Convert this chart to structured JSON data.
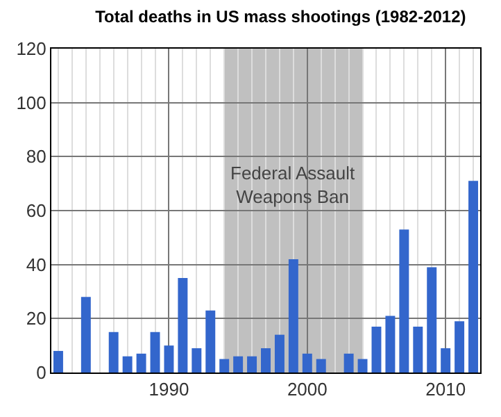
{
  "chart_data": {
    "type": "bar",
    "title": "Total deaths in US mass shootings (1982-2012)",
    "x": [
      1982,
      1983,
      1984,
      1985,
      1986,
      1987,
      1988,
      1989,
      1990,
      1991,
      1992,
      1993,
      1994,
      1995,
      1996,
      1997,
      1998,
      1999,
      2000,
      2001,
      2002,
      2003,
      2004,
      2005,
      2006,
      2007,
      2008,
      2009,
      2010,
      2011,
      2012
    ],
    "values": [
      8,
      0,
      28,
      0,
      15,
      6,
      7,
      15,
      10,
      35,
      9,
      23,
      5,
      6,
      6,
      9,
      14,
      42,
      7,
      5,
      0,
      7,
      5,
      17,
      21,
      53,
      17,
      39,
      9,
      19,
      71
    ],
    "color": "#3366cc",
    "xlim": [
      1981.5,
      2012.5
    ],
    "xticks": [
      {
        "value": 1982,
        "label": null
      },
      {
        "value": 1983,
        "label": null
      },
      {
        "value": 1984,
        "label": null
      },
      {
        "value": 1985,
        "label": null
      },
      {
        "value": 1986,
        "label": null
      },
      {
        "value": 1987,
        "label": null
      },
      {
        "value": 1988,
        "label": null
      },
      {
        "value": 1989,
        "label": null
      },
      1990,
      {
        "value": 1991,
        "label": null
      },
      {
        "value": 1992,
        "label": null
      },
      {
        "value": 1993,
        "label": null
      },
      {
        "value": 1994,
        "label": null
      },
      {
        "value": 1995,
        "label": null
      },
      {
        "value": 1996,
        "label": null
      },
      {
        "value": 1997,
        "label": null
      },
      {
        "value": 1998,
        "label": null
      },
      {
        "value": 1999,
        "label": null
      },
      2000,
      {
        "value": 2001,
        "label": null
      },
      {
        "value": 2002,
        "label": null
      },
      {
        "value": 2003,
        "label": null
      },
      {
        "value": 2004,
        "label": null
      },
      {
        "value": 2005,
        "label": null
      },
      {
        "value": 2006,
        "label": null
      },
      {
        "value": 2007,
        "label": null
      },
      {
        "value": 2008,
        "label": null
      },
      {
        "value": 2009,
        "label": null
      },
      2010,
      {
        "value": 2011,
        "label": null
      },
      {
        "value": 2012,
        "label": null
      }
    ],
    "ylim": [
      0,
      120
    ],
    "yticks": [
      0,
      20,
      40,
      60,
      80,
      100,
      120
    ],
    "grid": true,
    "bands": [
      {
        "axis": "x",
        "from": 1994,
        "to": 2004,
        "label": "Federal Assault\nWeapons Ban",
        "color": "#c0c0c0"
      }
    ]
  }
}
